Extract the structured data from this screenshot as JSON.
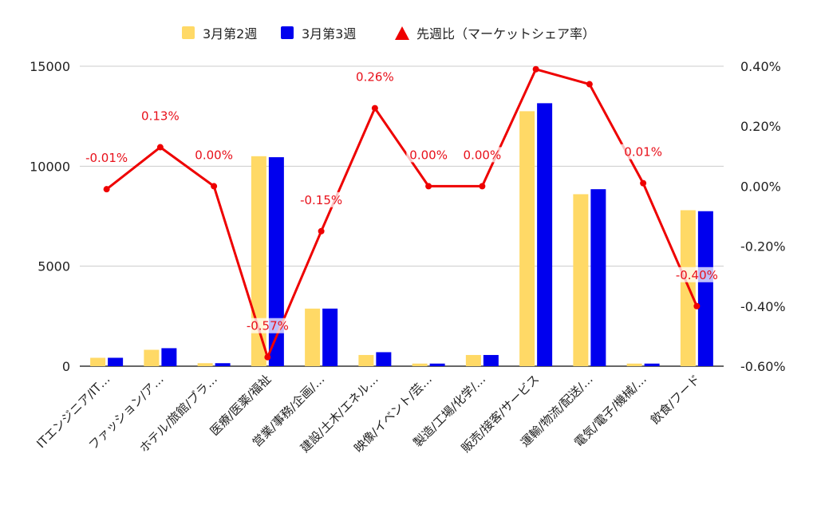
{
  "chart_data": {
    "type": "bar",
    "categories": [
      "ITエンジニア/IT…",
      "ファッション/ア…",
      "ホテル/旅館/ブラ…",
      "医療/医薬/福祉",
      "営業/事務/企画/…",
      "建設/土木/エネル…",
      "映像/イベント/芸…",
      "製造/工場/化学/…",
      "販売/接客/サービス",
      "運輸/物流/配送/…",
      "電気/電子/機械/…",
      "飲食/フード"
    ],
    "series": [
      {
        "name": "3月第2週",
        "type": "bar",
        "axis": "left",
        "color": "#ffd966",
        "values": [
          420,
          820,
          150,
          10500,
          2880,
          560,
          130,
          560,
          12750,
          8600,
          130,
          7800
        ]
      },
      {
        "name": "3月第3週",
        "type": "bar",
        "axis": "left",
        "color": "#0000ee",
        "values": [
          420,
          900,
          150,
          10450,
          2880,
          700,
          130,
          560,
          13150,
          8850,
          130,
          7750
        ]
      },
      {
        "name": "先週比（マーケットシェア率）",
        "type": "line",
        "axis": "right",
        "color": "#ee0000",
        "values": [
          -0.0001,
          0.0013,
          0.0,
          -0.0057,
          -0.0015,
          0.0026,
          0.0,
          0.0,
          0.0039,
          0.0034,
          0.0001,
          -0.004
        ],
        "labels": [
          "-0.01%",
          "0.13%",
          "0.00%",
          "-0.57%",
          "-0.15%",
          "0.26%",
          "0.00%",
          "0.00%",
          "",
          "",
          "0.01%",
          "-0.40%"
        ]
      }
    ],
    "left_axis": {
      "min": 0,
      "max": 15000,
      "ticks": [
        "0",
        "5000",
        "10000",
        "15000"
      ]
    },
    "right_axis": {
      "min": -0.006,
      "max": 0.004,
      "ticks": [
        "-0.60%",
        "-0.40%",
        "-0.20%",
        "0.00%",
        "0.20%",
        "0.40%"
      ]
    },
    "legend_position": "top",
    "grid": true
  }
}
